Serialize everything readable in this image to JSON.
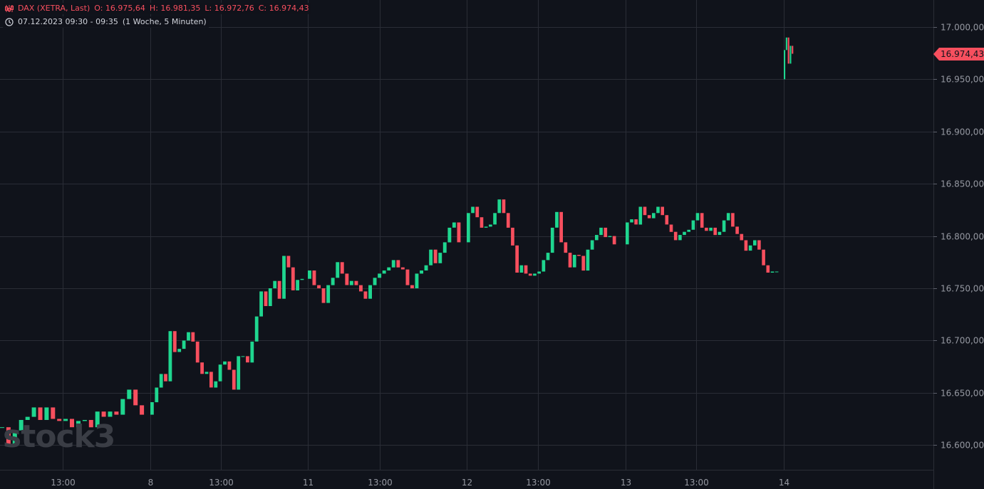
{
  "header": {
    "symbol": "DAX (XETRA, Last)",
    "open": "O: 16.975,64",
    "high": "H: 16.981,35",
    "low": "L: 16.972,76",
    "close": "C: 16.974,43",
    "timerange": "07.12.2023 09:30 - 09:35",
    "interval": "(1 Woche, 5 Minuten)",
    "icons": [
      "candles-icon",
      "clock-icon"
    ]
  },
  "watermark": "stock3",
  "last_price_label": "16.974,43",
  "colors": {
    "background": "#10131b",
    "up": "#1fd68f",
    "down": "#f74f5e",
    "grid": "#2a2d36",
    "axis_text": "#9598a1"
  },
  "chart_data": {
    "type": "candlestick",
    "title": "DAX (XETRA, Last)",
    "ylim": [
      16580,
      17020
    ],
    "y_ticks": [
      "16.600,00",
      "16.650,00",
      "16.700,00",
      "16.750,00",
      "16.800,00",
      "16.850,00",
      "16.900,00",
      "16.950,00",
      "17.000,00"
    ],
    "y_tick_values": [
      16600,
      16650,
      16700,
      16750,
      16800,
      16850,
      16900,
      16950,
      17000
    ],
    "x_ticks": [
      "13:00",
      "8",
      "13:00",
      "11",
      "13:00",
      "12",
      "13:00",
      "13",
      "13:00",
      "14"
    ],
    "grid": true,
    "last_price": 16974.43,
    "days": [
      {
        "closes": [
          16617,
          16600,
          16614,
          16624,
          16627,
          16636,
          16624,
          16636,
          16625,
          16623,
          16625,
          16617,
          16623,
          16624,
          16617,
          16632,
          16627,
          16632,
          16629,
          16644,
          16653,
          16638,
          16629
        ]
      },
      {
        "closes": [
          16641,
          16655,
          16668,
          16661,
          16709,
          16689,
          16692,
          16700,
          16708,
          16699,
          16679,
          16668,
          16670,
          16655,
          16661,
          16677,
          16680,
          16672,
          16653,
          16685,
          16685,
          16679,
          16699,
          16723,
          16747,
          16733,
          16750,
          16757,
          16740,
          16781,
          16770,
          16748,
          16758,
          16759
        ]
      },
      {
        "closes": [
          16767,
          16753,
          16750,
          16736,
          16753,
          16760,
          16775,
          16764,
          16753,
          16757,
          16753,
          16747,
          16740,
          16753,
          16760,
          16764,
          16767,
          16770,
          16777,
          16770,
          16768,
          16753,
          16750,
          16764,
          16767,
          16772,
          16787,
          16774,
          16784,
          16794,
          16808,
          16813,
          16794
        ]
      },
      {
        "closes": [
          16822,
          16828,
          16818,
          16808,
          16809,
          16811,
          16822,
          16835,
          16822,
          16808,
          16791,
          16765,
          16772,
          16764,
          16762,
          16764,
          16766,
          16777,
          16784,
          16808,
          16823,
          16794,
          16784,
          16770,
          16782,
          16781,
          16767,
          16787,
          16796,
          16801,
          16808,
          16799,
          16800,
          16792
        ]
      },
      {
        "closes": [
          16813,
          16816,
          16811,
          16828,
          16820,
          16817,
          16822,
          16828,
          16820,
          16811,
          16804,
          16796,
          16801,
          16804,
          16806,
          16815,
          16822,
          16808,
          16805,
          16808,
          16801,
          16804,
          16815,
          16822,
          16809,
          16802,
          16796,
          16786,
          16791,
          16796,
          16787,
          16772,
          16765,
          16766,
          16766
        ]
      },
      {
        "open": 16950,
        "closes": [
          16978,
          16990,
          16965,
          16982,
          16974.43
        ]
      }
    ]
  }
}
